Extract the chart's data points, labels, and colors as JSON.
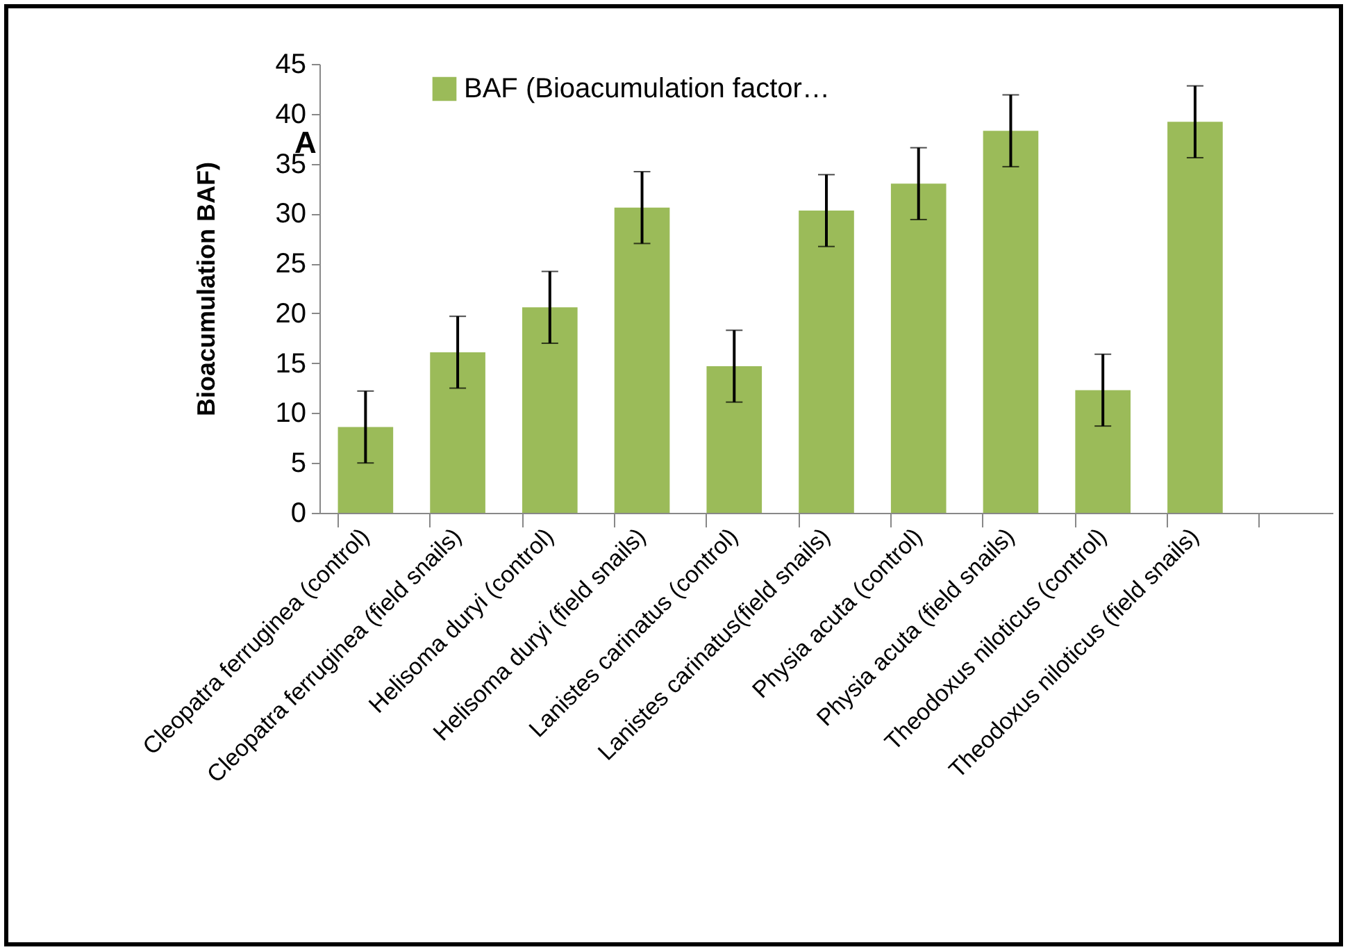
{
  "chart_data": {
    "type": "bar",
    "ylabel": "Bioacumulation  BAF)",
    "annotations": [
      "A"
    ],
    "categories": [
      "Cleopatra ferruginea (control)",
      "Cleopatra ferruginea (field snails)",
      "Helisoma duryi (control)",
      "Helisoma duryi (field snails)",
      "Lanistes carinatus (control)",
      "Lanistes carinatus(field snails)",
      "Physia acuta (control)",
      "Physia acuta (field snails)",
      "Theodoxus niloticus (control)",
      "Theodoxus niloticus (field snails)",
      null
    ],
    "series": [
      {
        "name": "BAF (Bioacumulation factor…",
        "color": "#9bbb59",
        "values": [
          8.6,
          16.1,
          20.6,
          30.6,
          14.7,
          30.3,
          33.0,
          38.3,
          12.3,
          39.2,
          null
        ],
        "errors": [
          3.6,
          3.6,
          3.6,
          3.6,
          3.6,
          3.6,
          3.6,
          3.6,
          3.6,
          3.6,
          null
        ]
      }
    ],
    "ylim": [
      0,
      45
    ],
    "yticks": [
      0,
      5,
      10,
      15,
      20,
      25,
      30,
      35,
      40,
      45
    ],
    "grid": false,
    "legend": "top"
  }
}
